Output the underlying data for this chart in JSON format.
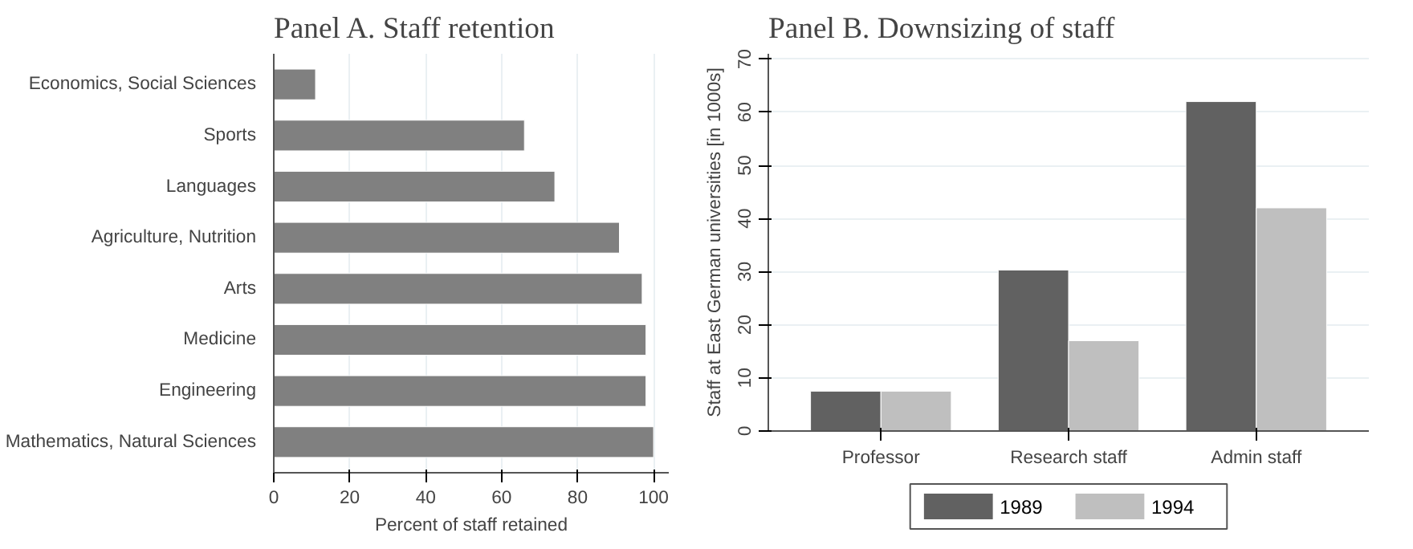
{
  "chart_data": [
    {
      "type": "bar",
      "title": "Panel A. Staff retention",
      "orientation": "horizontal",
      "xlabel": "Percent of staff retained",
      "categories": [
        "Economics, Social Sciences",
        "Sports",
        "Languages",
        "Agriculture, Nutrition",
        "Arts",
        "Medicine",
        "Engineering",
        "Mathematics, Natural Sciences"
      ],
      "values": [
        11,
        66,
        74,
        91,
        97,
        98,
        98,
        100
      ],
      "color": "#808080",
      "xlim": [
        0,
        104
      ],
      "xticks": [
        0,
        20,
        40,
        60,
        80,
        100
      ],
      "grid": "x"
    },
    {
      "type": "bar",
      "title": "Panel B. Downsizing of staff",
      "ylabel": "Staff at East German universities [in 1000s]",
      "categories": [
        "Professor",
        "Research staff",
        "Admin staff"
      ],
      "series": [
        {
          "name": "1989",
          "color": "#616161",
          "values": [
            7.5,
            30.3,
            62
          ]
        },
        {
          "name": "1994",
          "color": "#bfbfbf",
          "values": [
            7.5,
            17,
            42
          ]
        }
      ],
      "ylim": [
        0,
        71
      ],
      "yticks": [
        0,
        10,
        20,
        30,
        40,
        50,
        60,
        70
      ],
      "grid": "y",
      "legend": "bottom"
    }
  ]
}
